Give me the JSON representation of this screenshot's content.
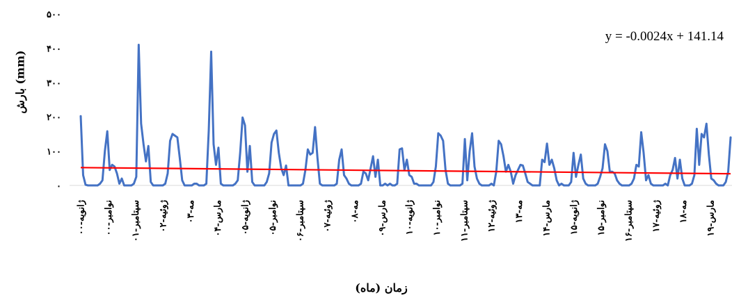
{
  "chart_data": {
    "type": "line",
    "title": "",
    "xlabel": "زمان (ماه)",
    "ylabel": "بارش (mm)",
    "ylim": [
      0,
      500
    ],
    "yticks": [
      0,
      100,
      200,
      300,
      400,
      500
    ],
    "ytick_labels": [
      "۰",
      "۱۰۰",
      "۲۰۰",
      "۳۰۰",
      "۴۰۰",
      "۵۰۰"
    ],
    "x_tick_labels": [
      "۰۰-ژانویه",
      "۰۰-نوامبر",
      "۰۱-سپتامبر",
      "۰۲-ژوئیه",
      "۰۳-مه",
      "۰۴-مارس",
      "۰۵-ژانویه",
      "۰۵-نوامبر",
      "۰۶-سپتامبر",
      "۰۷-ژوئیه",
      "۰۸-مه",
      "۰۹-مارس",
      "۱۰-ژانویه",
      "۱۰-نوامبر",
      "۱۱-سپتامبر",
      "۱۲-ژوئیه",
      "۱۳-مه",
      "۱۴-مارس",
      "۱۵-ژانویه",
      "۱۵-نوامبر",
      "۱۶-سپتامبر",
      "۱۷-ژوئیه",
      "۱۸-مه",
      "۱۹-مارس"
    ],
    "trendline_label": "y = -0.0024x + 141.14",
    "trendline": {
      "start": 52,
      "end": 34
    },
    "grid": false,
    "colors": {
      "series": "#4472c4",
      "trendline": "#ff0000"
    },
    "series": [
      {
        "values": [
          202,
          30,
          2,
          0,
          0,
          0,
          0,
          0,
          5,
          15,
          100,
          158,
          45,
          60,
          55,
          35,
          5,
          20,
          0,
          0,
          0,
          0,
          5,
          25,
          410,
          180,
          120,
          70,
          115,
          10,
          0,
          0,
          0,
          0,
          0,
          5,
          35,
          130,
          150,
          145,
          140,
          80,
          15,
          0,
          0,
          0,
          0,
          5,
          5,
          0,
          0,
          0,
          5,
          160,
          390,
          120,
          60,
          110,
          5,
          0,
          0,
          0,
          0,
          0,
          5,
          15,
          95,
          198,
          175,
          40,
          115,
          10,
          0,
          0,
          0,
          0,
          0,
          10,
          35,
          125,
          150,
          160,
          95,
          50,
          30,
          58,
          0,
          0,
          0,
          0,
          0,
          0,
          5,
          45,
          105,
          90,
          95,
          170,
          80,
          5,
          0,
          0,
          0,
          0,
          0,
          0,
          5,
          75,
          105,
          30,
          20,
          5,
          0,
          0,
          0,
          0,
          5,
          40,
          35,
          15,
          50,
          85,
          25,
          75,
          0,
          0,
          5,
          0,
          5,
          0,
          0,
          5,
          105,
          108,
          45,
          75,
          30,
          25,
          5,
          5,
          0,
          0,
          0,
          0,
          0,
          0,
          10,
          55,
          152,
          145,
          130,
          45,
          5,
          0,
          0,
          0,
          0,
          0,
          5,
          135,
          15,
          100,
          152,
          55,
          20,
          5,
          0,
          0,
          0,
          0,
          5,
          0,
          40,
          130,
          120,
          85,
          40,
          60,
          40,
          5,
          30,
          45,
          60,
          58,
          35,
          10,
          5,
          0,
          0,
          0,
          0,
          75,
          68,
          122,
          60,
          75,
          50,
          15,
          0,
          5,
          0,
          0,
          0,
          10,
          95,
          25,
          60,
          90,
          20,
          5,
          0,
          0,
          0,
          0,
          5,
          25,
          50,
          120,
          100,
          40,
          40,
          35,
          15,
          5,
          0,
          0,
          0,
          0,
          5,
          20,
          60,
          55,
          155,
          95,
          15,
          30,
          5,
          0,
          0,
          0,
          0,
          0,
          5,
          0,
          30,
          45,
          80,
          20,
          75,
          20,
          0,
          0,
          0,
          5,
          30,
          165,
          60,
          150,
          140,
          180,
          90,
          20,
          15,
          5,
          0,
          0,
          0,
          10,
          40,
          140
        ]
      }
    ]
  }
}
